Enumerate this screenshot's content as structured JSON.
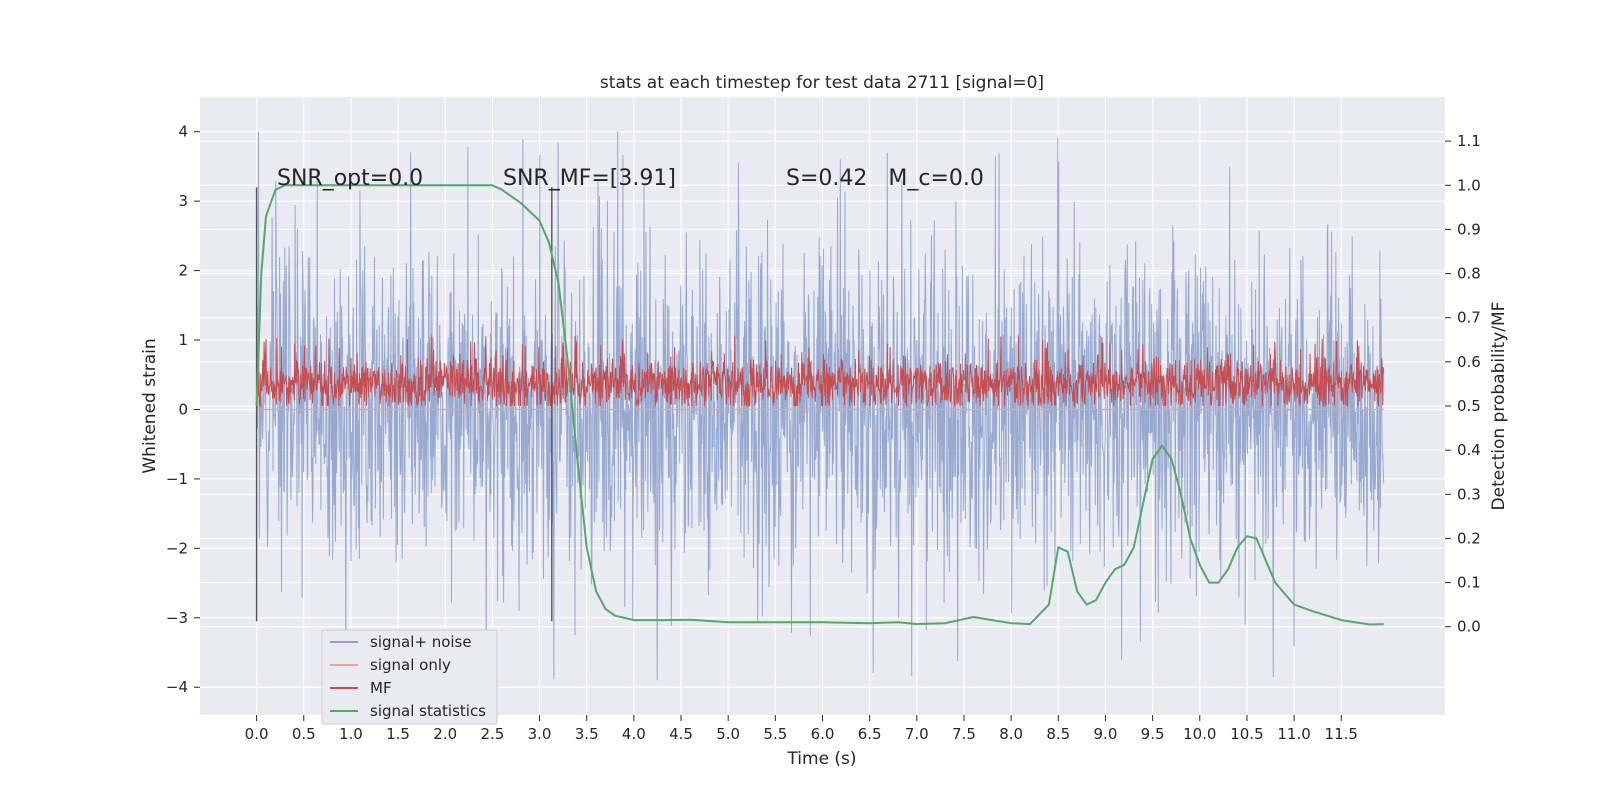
{
  "chart_data": {
    "type": "line",
    "title": "stats at each timestep for test data 2711 [signal=0]",
    "xlabel": "Time (s)",
    "ylabel": "Whitened strain",
    "ylabel_right": "Detection probability/MF",
    "xlim": [
      -0.6,
      12.6
    ],
    "ylim": [
      -4.4,
      4.5
    ],
    "ylim_right": [
      -0.2,
      1.2
    ],
    "xticks": [
      "0.0",
      "0.5",
      "1.0",
      "1.5",
      "2.0",
      "2.5",
      "3.0",
      "3.5",
      "4.0",
      "4.5",
      "5.0",
      "5.5",
      "6.0",
      "6.5",
      "7.0",
      "7.5",
      "8.0",
      "8.5",
      "9.0",
      "9.5",
      "10.0",
      "10.5",
      "11.0",
      "11.5"
    ],
    "yticks_left": [
      "4",
      "3",
      "2",
      "1",
      "0",
      "−1",
      "−2",
      "−3",
      "−4"
    ],
    "yticks_right": [
      "1.1",
      "1.0",
      "0.9",
      "0.8",
      "0.7",
      "0.6",
      "0.5",
      "0.4",
      "0.3",
      "0.2",
      "0.1",
      "0.0"
    ],
    "grid": true,
    "legend_location": "lower-left",
    "annotations": [
      {
        "x": 0.2,
        "y": 3.2,
        "text": "SNR_opt=0.0"
      },
      {
        "x": 2.6,
        "y": 3.2,
        "text": "SNR_MF=[3.91]"
      },
      {
        "x": 5.6,
        "y": 3.2,
        "text": "S=0.42   M_c=0.0"
      }
    ],
    "vertical_lines": [
      0.0,
      3.13
    ],
    "series": [
      {
        "name": "signal+ noise",
        "color": "#8ea2cc",
        "axis": "left",
        "description": "noise band roughly ±1.3 with spikes to about +4.1 and −3.9",
        "t_range": [
          0.0,
          11.95
        ]
      },
      {
        "name": "signal only",
        "color": "#e9a489",
        "axis": "left",
        "values": "flat at 0"
      },
      {
        "name": "MF",
        "color": "#c44e52",
        "axis": "right",
        "description": "band around 0.5–0.6 with peaks to 0.65",
        "t_range": [
          0.0,
          11.95
        ]
      },
      {
        "name": "signal statistics",
        "color": "#55a868",
        "axis": "right",
        "x": [
          0.0,
          0.05,
          0.1,
          0.2,
          0.3,
          0.5,
          1.0,
          1.5,
          2.0,
          2.5,
          2.6,
          2.8,
          3.0,
          3.1,
          3.2,
          3.3,
          3.4,
          3.5,
          3.6,
          3.7,
          3.8,
          4.0,
          4.3,
          4.6,
          5.0,
          5.5,
          6.0,
          6.5,
          6.8,
          7.0,
          7.3,
          7.6,
          7.8,
          8.0,
          8.2,
          8.4,
          8.5,
          8.6,
          8.7,
          8.8,
          8.9,
          9.0,
          9.1,
          9.2,
          9.3,
          9.4,
          9.5,
          9.6,
          9.7,
          9.8,
          9.9,
          10.0,
          10.1,
          10.2,
          10.3,
          10.4,
          10.5,
          10.6,
          10.7,
          10.8,
          11.0,
          11.2,
          11.5,
          11.8,
          11.95
        ],
        "values": [
          0.5,
          0.8,
          0.93,
          0.99,
          1.0,
          1.0,
          1.0,
          1.0,
          1.0,
          1.0,
          0.99,
          0.96,
          0.92,
          0.87,
          0.78,
          0.6,
          0.38,
          0.18,
          0.08,
          0.04,
          0.025,
          0.015,
          0.015,
          0.016,
          0.01,
          0.01,
          0.01,
          0.008,
          0.01,
          0.006,
          0.008,
          0.022,
          0.015,
          0.008,
          0.006,
          0.05,
          0.18,
          0.17,
          0.08,
          0.05,
          0.06,
          0.1,
          0.13,
          0.14,
          0.18,
          0.28,
          0.38,
          0.41,
          0.38,
          0.3,
          0.2,
          0.14,
          0.1,
          0.1,
          0.13,
          0.18,
          0.205,
          0.2,
          0.15,
          0.1,
          0.05,
          0.035,
          0.015,
          0.005,
          0.006
        ]
      }
    ]
  }
}
